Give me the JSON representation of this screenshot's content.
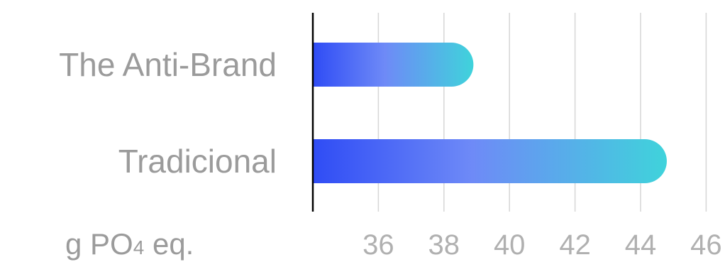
{
  "chart_data": {
    "type": "bar",
    "orientation": "horizontal",
    "categories": [
      "The Anti-Brand",
      "Tradicional"
    ],
    "values": [
      38.9,
      44.8
    ],
    "unit_label": {
      "main": "g PO",
      "sub": "4",
      "tail": " eq."
    },
    "xlim": [
      34,
      46
    ],
    "xticks": [
      36,
      38,
      40,
      42,
      44,
      46
    ],
    "grid": true,
    "legend": "none",
    "colors": {
      "gradient_start": "#2f4cf5",
      "gradient_mid": "#6e8af7",
      "gradient_end": "#3fd3db",
      "label": "#9b9b9b",
      "tick": "#b0b0b0"
    }
  }
}
